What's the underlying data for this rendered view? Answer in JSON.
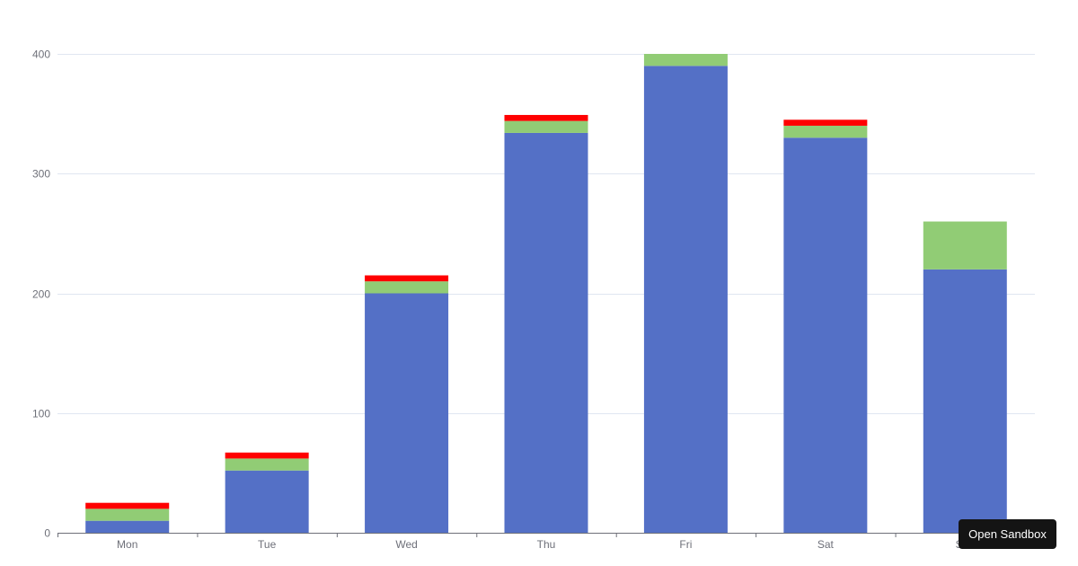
{
  "chart_data": {
    "type": "bar",
    "stacked": true,
    "categories": [
      "Mon",
      "Tue",
      "Wed",
      "Thu",
      "Fri",
      "Sat",
      "Sun"
    ],
    "series": [
      {
        "color": "#5470c6",
        "values": [
          10,
          52,
          200,
          334,
          390,
          330,
          220
        ]
      },
      {
        "color": "#91cc75",
        "values": [
          10,
          10,
          10,
          10,
          10,
          10,
          40
        ]
      },
      {
        "color": "#ff0000",
        "values": [
          5,
          5,
          5,
          5,
          0,
          5,
          0
        ]
      }
    ],
    "ylim": [
      0,
      400
    ],
    "yticks": [
      0,
      100,
      200,
      300,
      400
    ],
    "grid": true,
    "legend": "none",
    "title": "",
    "xlabel": "",
    "ylabel": ""
  },
  "sandbox_button": {
    "label": "Open Sandbox"
  }
}
